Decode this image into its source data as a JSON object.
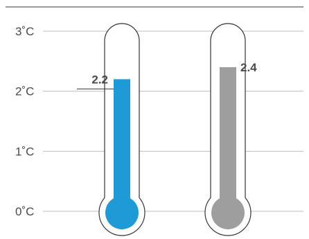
{
  "chart_data": {
    "type": "bar",
    "style": "thermometer",
    "categories": [
      "",
      ""
    ],
    "series": [
      {
        "values": [
          2.2,
          2.4
        ]
      }
    ],
    "value_labels": [
      "2.2",
      "2.4"
    ],
    "colors": [
      "#1e9bd7",
      "#9e9e9e"
    ],
    "unit": "°C",
    "yticks": [
      0,
      1,
      2,
      3
    ],
    "ytick_labels": [
      "0˚C",
      "1˚C",
      "2˚C",
      "3˚C"
    ],
    "ylim": [
      0,
      3
    ],
    "grid": true,
    "legend": "none",
    "title": "",
    "xlabel": "",
    "ylabel": ""
  }
}
